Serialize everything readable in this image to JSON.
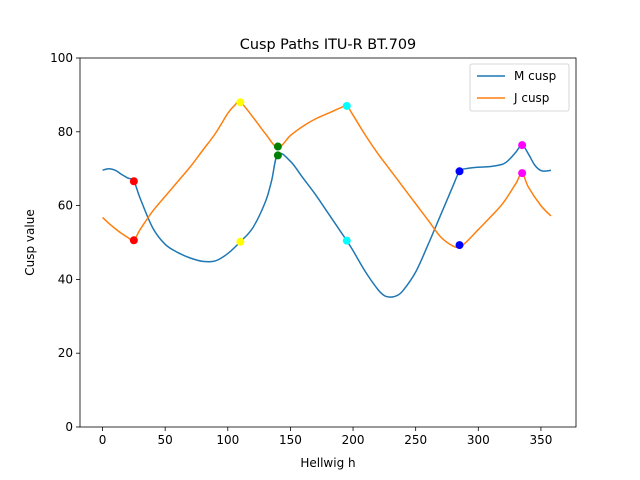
{
  "chart_data": {
    "type": "line",
    "title": "Cusp Paths ITU-R BT.709",
    "xlabel": "Hellwig h",
    "ylabel": "Cusp value",
    "xlim": [
      -18,
      378
    ],
    "ylim": [
      0,
      100
    ],
    "x_ticks": [
      0,
      50,
      100,
      150,
      200,
      250,
      300,
      350
    ],
    "y_ticks": [
      0,
      20,
      40,
      60,
      80,
      100
    ],
    "grid": false,
    "legend": "top-right",
    "series": [
      {
        "name": "M cusp",
        "color": "#1f77b4",
        "x": [
          0,
          5,
          10,
          15,
          20,
          25,
          30,
          40,
          50,
          60,
          70,
          80,
          90,
          100,
          110,
          120,
          130,
          135,
          140,
          150,
          160,
          170,
          180,
          190,
          195,
          200,
          210,
          220,
          225,
          230,
          235,
          240,
          250,
          260,
          270,
          280,
          285,
          290,
          300,
          310,
          320,
          325,
          330,
          335,
          340,
          345,
          350,
          355,
          358
        ],
        "y": [
          69.6,
          70,
          69.6,
          68.5,
          67.5,
          66.6,
          62,
          54,
          49.5,
          47.3,
          45.8,
          44.9,
          45,
          47,
          50.2,
          54,
          61,
          66.8,
          74,
          72,
          67.5,
          63,
          58,
          53,
          50.5,
          47.8,
          42,
          37.2,
          35.6,
          35.2,
          35.6,
          37,
          42,
          49.5,
          57.5,
          65.5,
          69.3,
          70,
          70.4,
          70.6,
          71.3,
          72.6,
          74.5,
          76.4,
          74,
          71,
          69.5,
          69.4,
          69.6
        ]
      },
      {
        "name": "J cusp",
        "color": "#ff7f0e",
        "x": [
          0,
          5,
          10,
          15,
          20,
          25,
          30,
          40,
          50,
          60,
          70,
          80,
          90,
          100,
          105,
          110,
          120,
          130,
          140,
          150,
          160,
          170,
          180,
          190,
          195,
          200,
          210,
          220,
          230,
          240,
          250,
          260,
          270,
          280,
          285,
          290,
          300,
          310,
          320,
          330,
          335,
          340,
          350,
          358
        ],
        "y": [
          56.8,
          55.2,
          53.8,
          52.5,
          51.4,
          50.6,
          53.5,
          58.5,
          62.5,
          66.5,
          70.5,
          75,
          79.5,
          85,
          87,
          88,
          84,
          79.5,
          75.8,
          79,
          81.5,
          83.5,
          85,
          86.5,
          87,
          84.5,
          79,
          74,
          69.5,
          65,
          60.5,
          56,
          51.5,
          49,
          48.8,
          50,
          53.5,
          57,
          60.8,
          66,
          68.8,
          65,
          60,
          57.2
        ]
      }
    ],
    "markers": [
      {
        "x": 25,
        "y": 66.6,
        "color": "#ff0000"
      },
      {
        "x": 25,
        "y": 50.6,
        "color": "#ff0000"
      },
      {
        "x": 110,
        "y": 88,
        "color": "#ffff00"
      },
      {
        "x": 110,
        "y": 50.2,
        "color": "#ffff00"
      },
      {
        "x": 140,
        "y": 76,
        "color": "#008000"
      },
      {
        "x": 140,
        "y": 73.6,
        "color": "#008000"
      },
      {
        "x": 195,
        "y": 87,
        "color": "#00ffff"
      },
      {
        "x": 195,
        "y": 50.5,
        "color": "#00ffff"
      },
      {
        "x": 285,
        "y": 69.3,
        "color": "#0000ff"
      },
      {
        "x": 285,
        "y": 49.3,
        "color": "#0000ff"
      },
      {
        "x": 335,
        "y": 76.4,
        "color": "#ff00ff"
      },
      {
        "x": 335,
        "y": 68.8,
        "color": "#ff00ff"
      }
    ]
  }
}
